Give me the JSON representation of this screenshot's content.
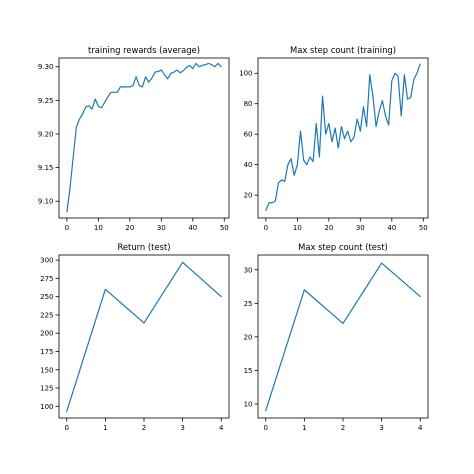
{
  "chart_data": [
    {
      "type": "line",
      "title": "training rewards (average)",
      "xlabel": "",
      "ylabel": "",
      "xlim": [
        -2.5,
        51.5
      ],
      "ylim": [
        9.075,
        9.313
      ],
      "xticks": [
        0,
        10,
        20,
        30,
        40,
        50
      ],
      "yticks": [
        9.1,
        9.15,
        9.2,
        9.25,
        9.3
      ],
      "ytick_labels": [
        "9.10",
        "9.15",
        "9.20",
        "9.25",
        "9.30"
      ],
      "grid": false,
      "color": "#1f77b4",
      "x": [
        0,
        1,
        2,
        3,
        4,
        5,
        6,
        7,
        8,
        9,
        10,
        11,
        12,
        13,
        14,
        15,
        16,
        17,
        18,
        19,
        20,
        21,
        22,
        23,
        24,
        25,
        26,
        27,
        28,
        29,
        30,
        31,
        32,
        33,
        34,
        35,
        36,
        37,
        38,
        39,
        40,
        41,
        42,
        43,
        44,
        45,
        46,
        47,
        48,
        49
      ],
      "y": [
        9.084,
        9.12,
        9.165,
        9.21,
        9.222,
        9.23,
        9.24,
        9.242,
        9.237,
        9.252,
        9.241,
        9.239,
        9.247,
        9.255,
        9.262,
        9.262,
        9.262,
        9.27,
        9.27,
        9.27,
        9.27,
        9.272,
        9.285,
        9.272,
        9.27,
        9.285,
        9.277,
        9.283,
        9.292,
        9.293,
        9.295,
        9.288,
        9.282,
        9.29,
        9.292,
        9.295,
        9.291,
        9.294,
        9.299,
        9.302,
        9.297,
        9.305,
        9.3,
        9.302,
        9.303,
        9.305,
        9.303,
        9.3,
        9.305,
        9.3
      ]
    },
    {
      "type": "line",
      "title": "Max step count (training)",
      "xlabel": "",
      "ylabel": "",
      "xlim": [
        -2.5,
        51.5
      ],
      "ylim": [
        5,
        110
      ],
      "xticks": [
        0,
        10,
        20,
        30,
        40,
        50
      ],
      "yticks": [
        20,
        40,
        60,
        80,
        100
      ],
      "grid": false,
      "color": "#1f77b4",
      "x": [
        0,
        1,
        2,
        3,
        4,
        5,
        6,
        7,
        8,
        9,
        10,
        11,
        12,
        13,
        14,
        15,
        16,
        17,
        18,
        19,
        20,
        21,
        22,
        23,
        24,
        25,
        26,
        27,
        28,
        29,
        30,
        31,
        32,
        33,
        34,
        35,
        36,
        37,
        38,
        39,
        40,
        41,
        42,
        43,
        44,
        45,
        46,
        47,
        48,
        49
      ],
      "y": [
        10,
        15,
        15,
        16,
        28,
        30,
        29,
        40,
        44,
        33,
        40,
        62,
        43,
        40,
        45,
        42,
        67,
        45,
        85,
        60,
        67,
        55,
        64,
        51,
        65,
        57,
        62,
        55,
        58,
        70,
        62,
        78,
        65,
        99,
        85,
        65,
        75,
        82,
        72,
        66,
        95,
        100,
        98,
        72,
        99,
        83,
        84,
        96,
        100,
        106
      ]
    },
    {
      "type": "line",
      "title": "Return (test)",
      "xlabel": "",
      "ylabel": "",
      "xlim": [
        -0.2,
        4.2
      ],
      "ylim": [
        84,
        307
      ],
      "xticks": [
        0,
        1,
        2,
        3,
        4
      ],
      "yticks": [
        100,
        125,
        150,
        175,
        200,
        225,
        250,
        275,
        300
      ],
      "grid": false,
      "color": "#1f77b4",
      "x": [
        0,
        1,
        2,
        3,
        4
      ],
      "y": [
        93,
        260,
        214,
        297,
        250
      ]
    },
    {
      "type": "line",
      "title": "Max step count (test)",
      "xlabel": "",
      "ylabel": "",
      "xlim": [
        -0.2,
        4.2
      ],
      "ylim": [
        7.9,
        32.2
      ],
      "xticks": [
        0,
        1,
        2,
        3,
        4
      ],
      "yticks": [
        10,
        15,
        20,
        25,
        30
      ],
      "grid": false,
      "color": "#1f77b4",
      "x": [
        0,
        1,
        2,
        3,
        4
      ],
      "y": [
        9,
        27,
        22,
        31,
        26
      ]
    }
  ]
}
